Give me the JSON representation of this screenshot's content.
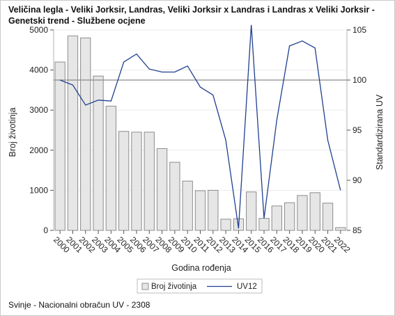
{
  "title": "Veličina legla - Veliki Jorksir, Landras, Veliki Jorksir x Landras i Landras x Veliki Jorksir - Genetski trend - Službene ocjene",
  "footer": "Svinje - Nacionalni obračun UV - 2308",
  "chart_data": {
    "type": "bar",
    "title": "Veličina legla - Veliki Jorksir, Landras, Veliki Jorksir x Landras i Landras x Veliki Jorksir - Genetski trend - Službene ocjene",
    "xlabel": "Godina rođenja",
    "ylabel": "Broj životinja",
    "y2label": "Standardizirana UV",
    "categories": [
      "2000",
      "2001",
      "2002",
      "2003",
      "2004",
      "2005",
      "2006",
      "2007",
      "2008",
      "2009",
      "2010",
      "2011",
      "2012",
      "2013",
      "2014",
      "2015",
      "2016",
      "2017",
      "2018",
      "2019",
      "2020",
      "2021",
      "2022"
    ],
    "ylim": [
      0,
      5000
    ],
    "yticks": [
      0,
      1000,
      2000,
      3000,
      4000,
      5000
    ],
    "y2lim": [
      85,
      105
    ],
    "y2ticks": [
      85,
      90,
      95,
      100,
      105
    ],
    "reference_line_y2": 100,
    "series": [
      {
        "name": "Broj životinja",
        "type": "bar",
        "axis": "left",
        "color": "#e6e6e6",
        "edge": "#8c8c8c",
        "values": [
          4200,
          4850,
          4800,
          3850,
          3100,
          2470,
          2450,
          2450,
          2040,
          1700,
          1230,
          990,
          1000,
          280,
          290,
          960,
          300,
          610,
          690,
          870,
          940,
          680,
          70
        ]
      },
      {
        "name": "UV12",
        "type": "line",
        "axis": "right",
        "color": "#1f3f8f",
        "values": [
          100.0,
          99.5,
          97.5,
          98.0,
          97.9,
          101.8,
          102.6,
          101.1,
          100.8,
          100.8,
          101.4,
          99.3,
          98.5,
          94.0,
          85.2,
          105.5,
          86.2,
          96.0,
          103.4,
          103.9,
          103.2,
          94.0,
          89.0
        ]
      }
    ],
    "legend": {
      "position": "bottom",
      "items": [
        "Broj životinja",
        "UV12"
      ]
    },
    "grid": false
  }
}
